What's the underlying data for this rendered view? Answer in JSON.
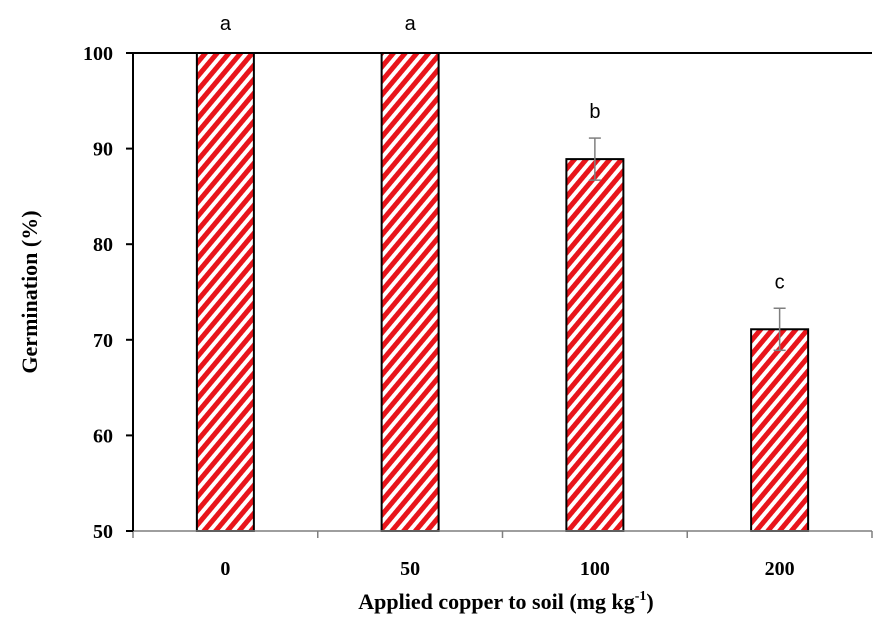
{
  "chart_data": {
    "type": "bar",
    "categories": [
      "0",
      "50",
      "100",
      "200"
    ],
    "values": [
      100,
      100,
      88.9,
      71.1
    ],
    "errors": [
      0,
      0,
      2.2,
      2.2
    ],
    "significance_letters": [
      "a",
      "a",
      "b",
      "c"
    ],
    "xlabel_main": "Applied copper to soil (mg kg",
    "xlabel_sup": "-1",
    "xlabel_end": ")",
    "ylabel": "Germination (%)",
    "ylim": [
      50,
      100
    ],
    "yticks": [
      "50",
      "60",
      "70",
      "80",
      "90",
      "100"
    ],
    "bar_color": "#e8151b",
    "bar_pattern": "diagonal-stripes",
    "grid": false
  }
}
